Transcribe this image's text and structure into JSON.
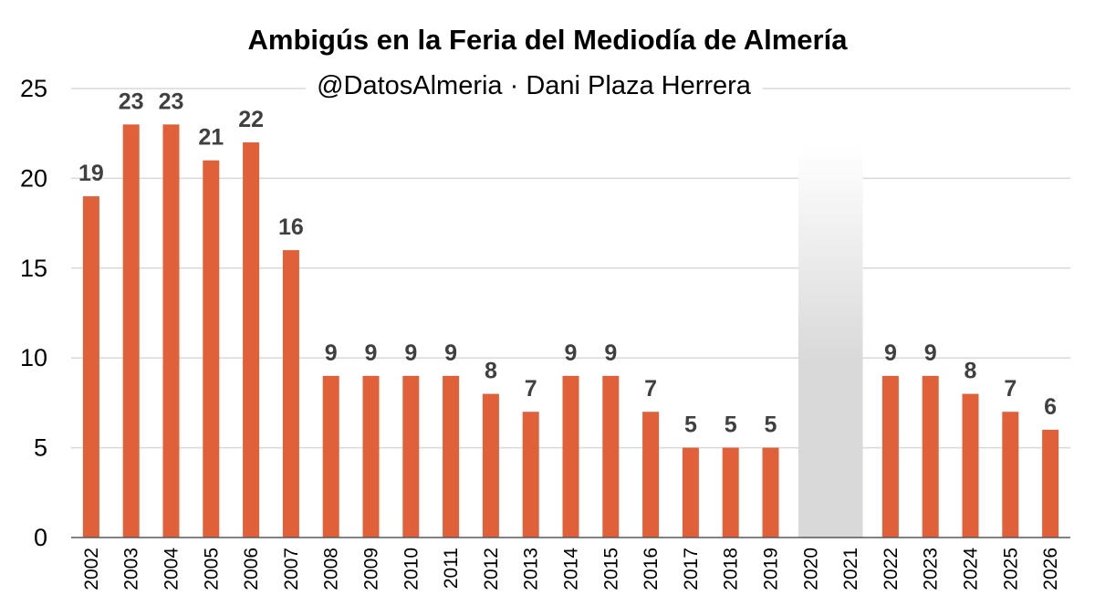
{
  "chart_data": {
    "type": "bar",
    "title": "Ambigús en la Feria del Mediodía de Almería",
    "subtitle": "@DatosAlmeria · Dani Plaza Herrera",
    "categories": [
      "2002",
      "2003",
      "2004",
      "2005",
      "2006",
      "2007",
      "2008",
      "2009",
      "2010",
      "2011",
      "2012",
      "2013",
      "2014",
      "2015",
      "2016",
      "2017",
      "2018",
      "2019",
      "2020",
      "2021",
      "2022",
      "2023",
      "2024",
      "2025",
      "2026"
    ],
    "values": [
      19,
      23,
      23,
      21,
      22,
      16,
      9,
      9,
      9,
      9,
      8,
      7,
      9,
      9,
      7,
      5,
      5,
      5,
      null,
      null,
      9,
      9,
      8,
      7,
      6
    ],
    "ylim": [
      0,
      25
    ],
    "yticks": [
      0,
      5,
      10,
      15,
      20,
      25
    ],
    "grid": true,
    "legend": "none",
    "shaded_categories": [
      "2020",
      "2021"
    ],
    "bar_color": "#e0603a",
    "label_color": "#404040",
    "xlabel": "",
    "ylabel": ""
  }
}
